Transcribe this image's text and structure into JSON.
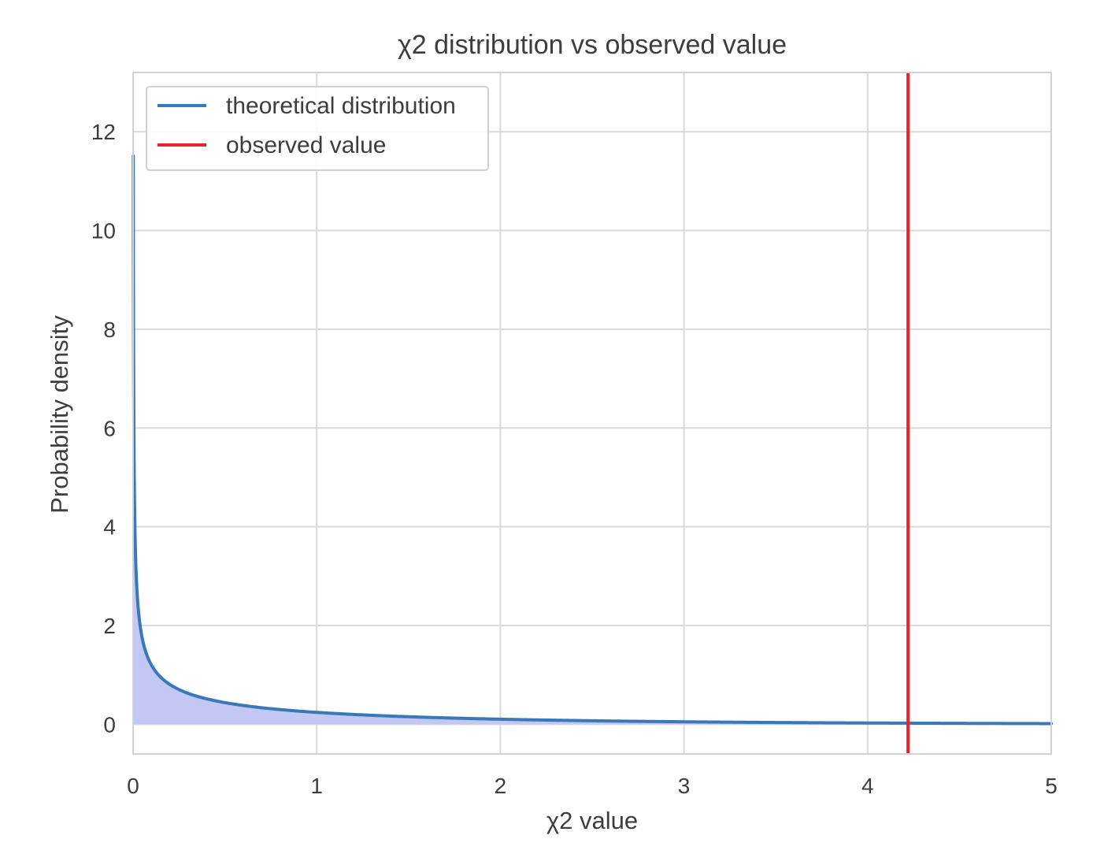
{
  "chart_data": {
    "type": "line",
    "title": "χ2 distribution vs observed value",
    "xlabel": "χ2 value",
    "ylabel": "Probability density",
    "xlim": [
      0,
      5
    ],
    "ylim": [
      -0.6,
      13.2
    ],
    "x_ticks": [
      0,
      1,
      2,
      3,
      4,
      5
    ],
    "x_tick_labels": [
      "0",
      "1",
      "2",
      "3",
      "4",
      "5"
    ],
    "y_ticks": [
      0,
      2,
      4,
      6,
      8,
      10,
      12
    ],
    "y_tick_labels": [
      "0",
      "2",
      "4",
      "6",
      "8",
      "10",
      "12"
    ],
    "grid": true,
    "legend_position": "top-left",
    "series": [
      {
        "name": "theoretical distribution",
        "kind": "line",
        "distribution": "chi-squared",
        "degrees_of_freedom": 1,
        "color": "#3a78b8",
        "fill_color": "#c3c7f4",
        "x": [
          0.005,
          0.01,
          0.02,
          0.05,
          0.1,
          0.2,
          0.3,
          0.5,
          0.75,
          1,
          1.5,
          2,
          2.5,
          3,
          3.5,
          4,
          4.5,
          5
        ],
        "y": [
          5.632,
          3.97,
          2.792,
          1.747,
          1.2,
          0.807,
          0.627,
          0.439,
          0.318,
          0.242,
          0.154,
          0.104,
          0.072,
          0.051,
          0.037,
          0.027,
          0.02,
          0.015
        ]
      },
      {
        "name": "observed value",
        "kind": "vline",
        "x": 4.22,
        "color": "#e8242a"
      }
    ]
  }
}
